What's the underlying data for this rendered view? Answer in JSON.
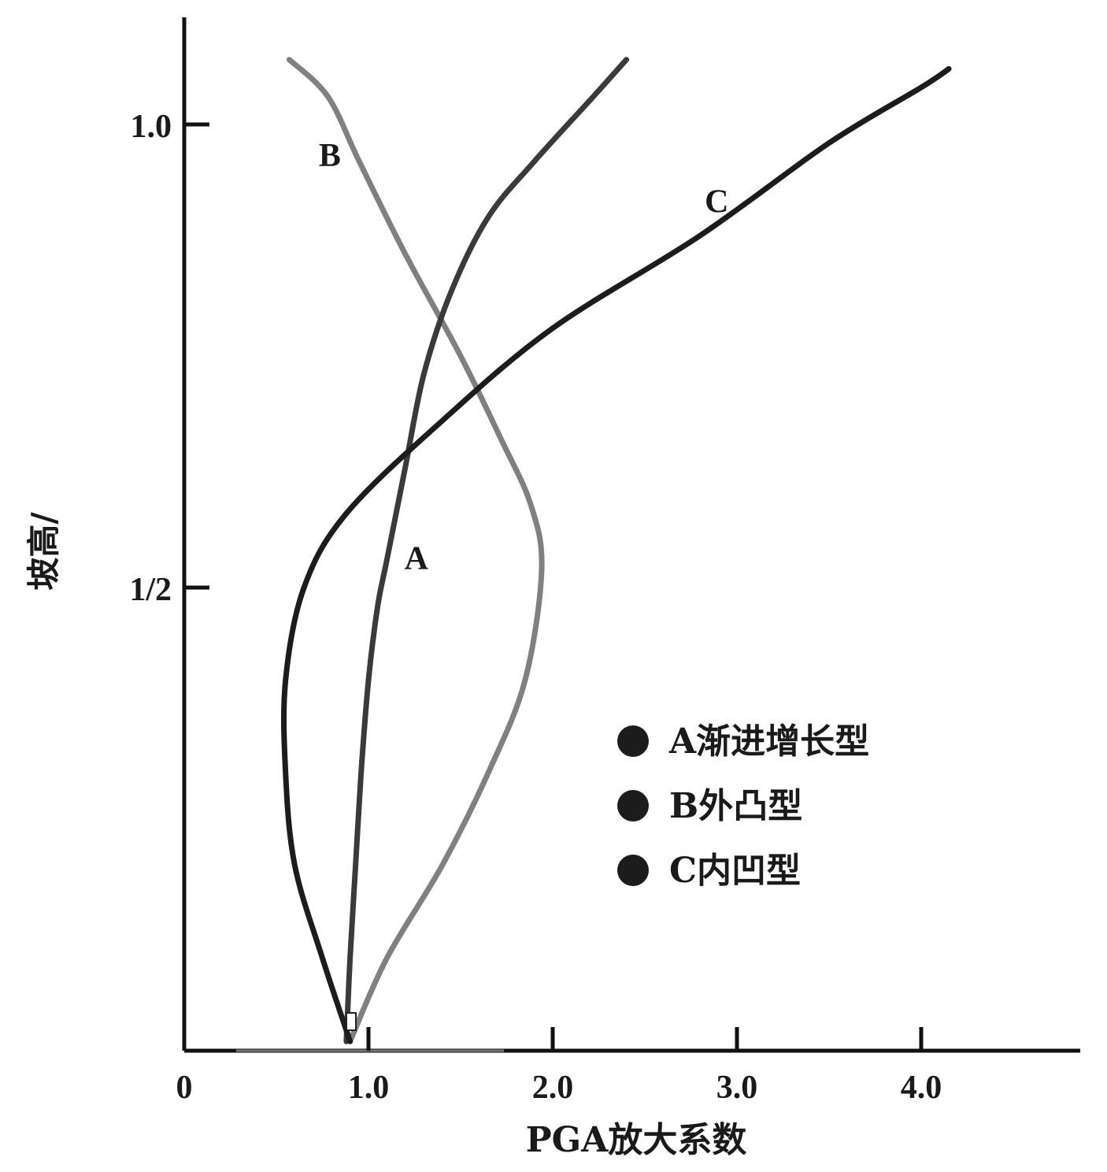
{
  "chart_data": {
    "type": "line",
    "title": "",
    "xlabel": "PGA放大系数",
    "ylabel": "坡高/",
    "x_ticks": [
      {
        "value": 0,
        "label": "0"
      },
      {
        "value": 1.0,
        "label": "1.0"
      },
      {
        "value": 2.0,
        "label": "2.0"
      },
      {
        "value": 3.0,
        "label": "3.0"
      },
      {
        "value": 4.0,
        "label": "4.0"
      }
    ],
    "y_ticks": [
      {
        "value": 0.5,
        "label": "1/2"
      },
      {
        "value": 1.0,
        "label": "1.0"
      }
    ],
    "xlim": [
      0,
      4.85
    ],
    "ylim": [
      0,
      1.11
    ],
    "grid": false,
    "legend_position": "bottom-right",
    "legend": [
      {
        "label": "A渐进增长型",
        "color": "#1c1c1c"
      },
      {
        "label": "B外凸型",
        "color": "#1c1c1c"
      },
      {
        "label": "C内凹型",
        "color": "#1c1c1c"
      }
    ],
    "series": [
      {
        "name": "A",
        "color": "#3a3a3a",
        "points": [
          {
            "x": 0.88,
            "y": 0.01
          },
          {
            "x": 0.9,
            "y": 0.1
          },
          {
            "x": 0.93,
            "y": 0.2
          },
          {
            "x": 0.96,
            "y": 0.3
          },
          {
            "x": 1.0,
            "y": 0.4
          },
          {
            "x": 1.05,
            "y": 0.48
          },
          {
            "x": 1.1,
            "y": 0.53
          },
          {
            "x": 1.2,
            "y": 0.63
          },
          {
            "x": 1.3,
            "y": 0.73
          },
          {
            "x": 1.45,
            "y": 0.82
          },
          {
            "x": 1.65,
            "y": 0.9
          },
          {
            "x": 1.9,
            "y": 0.96
          },
          {
            "x": 2.22,
            "y": 1.03
          },
          {
            "x": 2.4,
            "y": 1.07
          }
        ]
      },
      {
        "name": "B",
        "color": "#808080",
        "points": [
          {
            "x": 0.9,
            "y": 0.01
          },
          {
            "x": 1.1,
            "y": 0.1
          },
          {
            "x": 1.4,
            "y": 0.2
          },
          {
            "x": 1.65,
            "y": 0.3
          },
          {
            "x": 1.85,
            "y": 0.4
          },
          {
            "x": 1.94,
            "y": 0.52
          },
          {
            "x": 1.88,
            "y": 0.59
          },
          {
            "x": 1.72,
            "y": 0.66
          },
          {
            "x": 1.5,
            "y": 0.75
          },
          {
            "x": 1.2,
            "y": 0.86
          },
          {
            "x": 0.95,
            "y": 0.96
          },
          {
            "x": 0.78,
            "y": 1.03
          },
          {
            "x": 0.57,
            "y": 1.07
          }
        ]
      },
      {
        "name": "C",
        "color": "#1c1c1c",
        "points": [
          {
            "x": 0.9,
            "y": 0.01
          },
          {
            "x": 0.75,
            "y": 0.1
          },
          {
            "x": 0.6,
            "y": 0.2
          },
          {
            "x": 0.55,
            "y": 0.3
          },
          {
            "x": 0.55,
            "y": 0.4
          },
          {
            "x": 0.65,
            "y": 0.5
          },
          {
            "x": 0.88,
            "y": 0.58
          },
          {
            "x": 1.4,
            "y": 0.68
          },
          {
            "x": 2.0,
            "y": 0.78
          },
          {
            "x": 2.8,
            "y": 0.88
          },
          {
            "x": 3.5,
            "y": 0.98
          },
          {
            "x": 4.0,
            "y": 1.04
          },
          {
            "x": 4.15,
            "y": 1.06
          }
        ]
      }
    ]
  }
}
